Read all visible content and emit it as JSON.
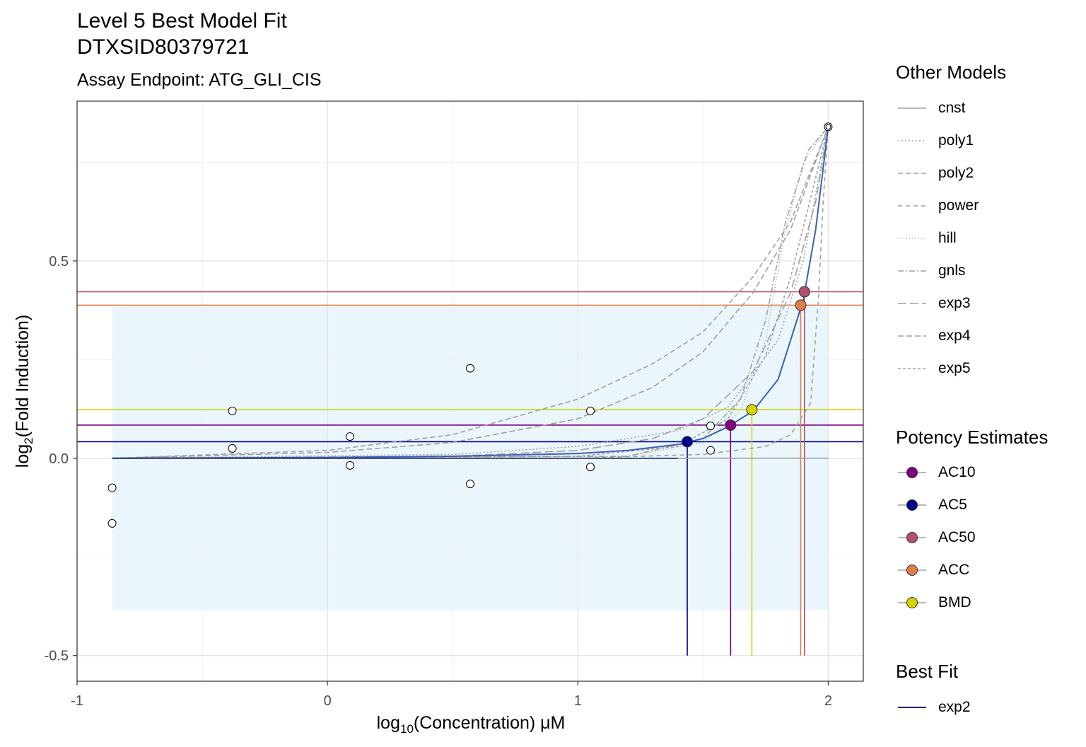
{
  "title": [
    "Level 5 Best Model Fit",
    "DTXSID80379721"
  ],
  "subtitle": "Assay Endpoint:  ATG_GLI_CIS",
  "colors": {
    "cutoff_band": "#eaf6fb",
    "other_models": "#a0a0a0",
    "best_fit": "#3d5fb8",
    "AC10": "#800080",
    "AC5": "#00008b",
    "AC50": "#b0506a",
    "ACC": "#e07d4a",
    "BMD": "#d4d400"
  },
  "chart_data": {
    "type": "scatter",
    "xlabel": "log10(Concentration) μM",
    "ylabel": "log2(Fold Induction)",
    "xlim": [
      -1.0,
      2.14
    ],
    "ylim": [
      -0.565,
      0.905
    ],
    "x_ticks": [
      -1,
      0,
      1,
      2
    ],
    "x_tick_labels": [
      "-1",
      "0",
      "1",
      "2"
    ],
    "y_ticks": [
      -0.5,
      0.0,
      0.5
    ],
    "y_tick_labels": [
      "-0.5",
      "0.0",
      "0.5"
    ],
    "grid": true,
    "cutoff_band": {
      "x": [
        -0.86,
        2.0
      ],
      "y": [
        -0.385,
        0.385
      ]
    },
    "points": [
      {
        "x": -0.86,
        "y": -0.075
      },
      {
        "x": -0.86,
        "y": -0.165
      },
      {
        "x": -0.38,
        "y": 0.12
      },
      {
        "x": -0.38,
        "y": 0.025
      },
      {
        "x": 0.09,
        "y": 0.055
      },
      {
        "x": 0.09,
        "y": -0.018
      },
      {
        "x": 0.57,
        "y": 0.228
      },
      {
        "x": 0.57,
        "y": -0.065
      },
      {
        "x": 1.05,
        "y": 0.12
      },
      {
        "x": 1.05,
        "y": -0.022
      },
      {
        "x": 1.53,
        "y": 0.082
      },
      {
        "x": 1.53,
        "y": 0.02
      },
      {
        "x": 2.0,
        "y": 0.84
      }
    ],
    "other_models": [
      {
        "name": "cnst",
        "dash": "none",
        "values": [
          [
            -0.86,
            0.0
          ],
          [
            2.0,
            0.0
          ]
        ]
      },
      {
        "name": "poly1",
        "dash": "2,3",
        "values": [
          [
            -0.86,
            0.0
          ],
          [
            0.5,
            0.01
          ],
          [
            1.0,
            0.03
          ],
          [
            1.4,
            0.07
          ],
          [
            1.6,
            0.13
          ],
          [
            1.8,
            0.3
          ],
          [
            1.9,
            0.5
          ],
          [
            2.0,
            0.84
          ]
        ]
      },
      {
        "name": "poly2",
        "dash": "7,4",
        "values": [
          [
            -0.86,
            0.0
          ],
          [
            0.0,
            0.02
          ],
          [
            0.5,
            0.06
          ],
          [
            1.0,
            0.15
          ],
          [
            1.3,
            0.24
          ],
          [
            1.5,
            0.32
          ],
          [
            1.7,
            0.46
          ],
          [
            1.85,
            0.6
          ],
          [
            2.0,
            0.84
          ]
        ]
      },
      {
        "name": "power",
        "dash": "6,5",
        "values": [
          [
            -0.86,
            0.0
          ],
          [
            1.0,
            0.0
          ],
          [
            1.5,
            0.01
          ],
          [
            1.75,
            0.03
          ],
          [
            1.85,
            0.06
          ],
          [
            1.93,
            0.14
          ],
          [
            1.96,
            0.4
          ],
          [
            1.98,
            0.65
          ],
          [
            2.0,
            0.84
          ]
        ]
      },
      {
        "name": "hill",
        "dash": "1,3",
        "values": [
          [
            -0.86,
            0.0
          ],
          [
            1.2,
            0.005
          ],
          [
            1.5,
            0.04
          ],
          [
            1.65,
            0.12
          ],
          [
            1.75,
            0.3
          ],
          [
            1.82,
            0.55
          ],
          [
            1.9,
            0.75
          ],
          [
            2.0,
            0.84
          ]
        ]
      },
      {
        "name": "gnls",
        "dash": "8,3,2,3",
        "values": [
          [
            -0.86,
            0.0
          ],
          [
            1.2,
            0.005
          ],
          [
            1.5,
            0.05
          ],
          [
            1.65,
            0.15
          ],
          [
            1.75,
            0.35
          ],
          [
            1.83,
            0.6
          ],
          [
            1.92,
            0.78
          ],
          [
            2.0,
            0.84
          ]
        ]
      },
      {
        "name": "exp3",
        "dash": "12,5",
        "values": [
          [
            -0.86,
            0.0
          ],
          [
            0.5,
            0.005
          ],
          [
            1.0,
            0.02
          ],
          [
            1.3,
            0.05
          ],
          [
            1.5,
            0.1
          ],
          [
            1.7,
            0.22
          ],
          [
            1.85,
            0.42
          ],
          [
            1.95,
            0.65
          ],
          [
            2.0,
            0.84
          ]
        ]
      },
      {
        "name": "exp4",
        "dash": "8,4",
        "values": [
          [
            -0.86,
            0.0
          ],
          [
            0.0,
            0.015
          ],
          [
            0.5,
            0.04
          ],
          [
            1.0,
            0.1
          ],
          [
            1.3,
            0.18
          ],
          [
            1.5,
            0.27
          ],
          [
            1.7,
            0.42
          ],
          [
            1.85,
            0.58
          ],
          [
            2.0,
            0.84
          ]
        ]
      },
      {
        "name": "exp5",
        "dash": "4,3",
        "values": [
          [
            -0.86,
            0.0
          ],
          [
            1.0,
            0.005
          ],
          [
            1.4,
            0.03
          ],
          [
            1.6,
            0.1
          ],
          [
            1.75,
            0.26
          ],
          [
            1.85,
            0.46
          ],
          [
            1.93,
            0.66
          ],
          [
            2.0,
            0.84
          ]
        ]
      }
    ],
    "best_fit": {
      "name": "exp2",
      "values": [
        [
          -0.86,
          0.0
        ],
        [
          0.0,
          0.002
        ],
        [
          0.5,
          0.005
        ],
        [
          1.0,
          0.012
        ],
        [
          1.2,
          0.02
        ],
        [
          1.4,
          0.035
        ],
        [
          1.5,
          0.05
        ],
        [
          1.6,
          0.08
        ],
        [
          1.7,
          0.12
        ],
        [
          1.8,
          0.2
        ],
        [
          1.9,
          0.4
        ],
        [
          1.95,
          0.58
        ],
        [
          2.0,
          0.84
        ]
      ]
    },
    "potency": [
      {
        "name": "AC10",
        "x": 1.61,
        "y": 0.084
      },
      {
        "name": "AC5",
        "x": 1.437,
        "y": 0.042
      },
      {
        "name": "AC50",
        "x": 1.905,
        "y": 0.422
      },
      {
        "name": "ACC",
        "x": 1.89,
        "y": 0.388
      },
      {
        "name": "BMD",
        "x": 1.695,
        "y": 0.123
      }
    ]
  },
  "legend": {
    "other_models_title": "Other Models",
    "other_models": [
      "cnst",
      "poly1",
      "poly2",
      "power",
      "hill",
      "gnls",
      "exp3",
      "exp4",
      "exp5"
    ],
    "potency_title": "Potency Estimates",
    "potency": [
      "AC10",
      "AC5",
      "AC50",
      "ACC",
      "BMD"
    ],
    "best_fit_title": "Best Fit",
    "best_fit": [
      "exp2"
    ]
  }
}
